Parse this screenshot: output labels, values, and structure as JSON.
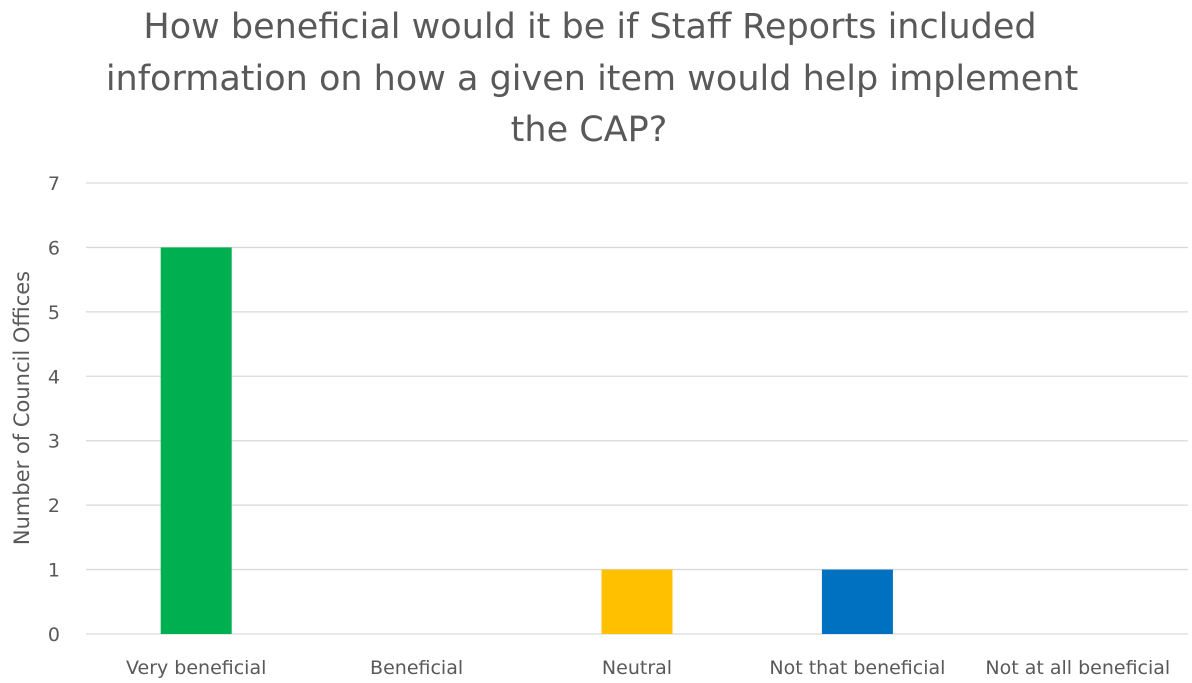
{
  "chart_data": {
    "type": "bar",
    "title": "How beneficial would it be if Staff Reports included information on how a given item would help implement the CAP?",
    "title_lines": [
      "How beneficial would it be if Staff Reports included",
      "information on how a given item would help implement",
      "the CAP?"
    ],
    "xlabel": "",
    "ylabel": "Number of Council Offices",
    "categories": [
      "Very beneficial",
      "Beneficial",
      "Neutral",
      "Not that beneficial",
      "Not at all beneficial"
    ],
    "values": [
      6,
      0,
      1,
      1,
      0
    ],
    "bar_colors": [
      "#00b050",
      "#92d050",
      "#ffc000",
      "#0070c0",
      "#7f7f7f"
    ],
    "ylim": [
      0,
      7
    ],
    "yticks": [
      0,
      1,
      2,
      3,
      4,
      5,
      6,
      7
    ],
    "grid": true,
    "legend": "none"
  }
}
